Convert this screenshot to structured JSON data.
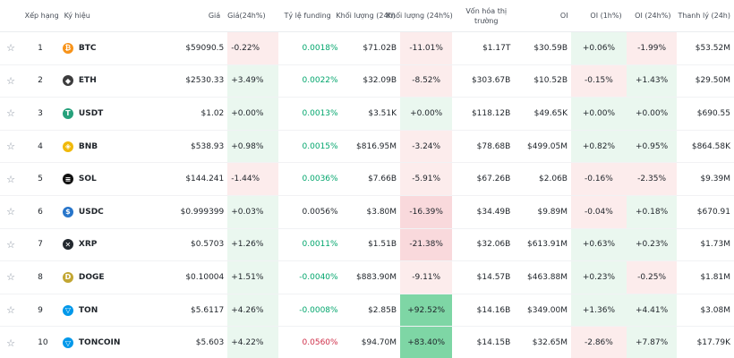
{
  "header": {
    "rank": "Xếp hạng",
    "symbol": "Ký hiệu",
    "price": "Giá",
    "change": "Giá(24h%)",
    "funding": "Tỷ lệ funding",
    "volume": "Khối lượng (24h)",
    "volume_change": "Khối lượng (24h%)",
    "mcap": "Vốn hóa thị trường",
    "oi": "OI",
    "oi1h": "OI (1h%)",
    "oi24h": "OI (24h%)",
    "liq": "Thanh lý (24h)"
  },
  "colors": {
    "pos_light": "#eaf7ef",
    "pos_mid": "#d7f0e0",
    "pos_strong": "#7ed6a5",
    "neg_light": "#fcecec",
    "neg_mid": "#f9d9dc",
    "neg_strong": "#f4bcc3"
  },
  "rows": [
    {
      "rank": "1",
      "symbol": "BTC",
      "icon": "btc-icon",
      "icon_color": "#f7931a",
      "glyph": "₿",
      "price": "$59090.5",
      "change": "-0.22%",
      "change_bg": "neg_light",
      "funding": "0.0018%",
      "funding_tone": "pos",
      "volume": "$71.02B",
      "vchg": "-11.01%",
      "vchg_bg": "neg_light",
      "mcap": "$1.17T",
      "oi": "$30.59B",
      "oi1h": "+0.06%",
      "oi1h_bg": "pos_light",
      "oi24h": "-1.99%",
      "oi24h_bg": "neg_light",
      "liq": "$53.52M"
    },
    {
      "rank": "2",
      "symbol": "ETH",
      "icon": "eth-icon",
      "icon_color": "#3c3c3d",
      "glyph": "◆",
      "price": "$2530.33",
      "change": "+3.49%",
      "change_bg": "pos_light",
      "funding": "0.0022%",
      "funding_tone": "pos",
      "volume": "$32.09B",
      "vchg": "-8.52%",
      "vchg_bg": "neg_light",
      "mcap": "$303.67B",
      "oi": "$10.52B",
      "oi1h": "-0.15%",
      "oi1h_bg": "neg_light",
      "oi24h": "+1.43%",
      "oi24h_bg": "pos_light",
      "liq": "$29.50M"
    },
    {
      "rank": "3",
      "symbol": "USDT",
      "icon": "usdt-icon",
      "icon_color": "#26a17b",
      "glyph": "T",
      "price": "$1.02",
      "change": "+0.00%",
      "change_bg": "pos_light",
      "funding": "0.0013%",
      "funding_tone": "pos",
      "volume": "$3.51K",
      "vchg": "+0.00%",
      "vchg_bg": "pos_light",
      "mcap": "$118.12B",
      "oi": "$49.65K",
      "oi1h": "+0.00%",
      "oi1h_bg": "pos_light",
      "oi24h": "+0.00%",
      "oi24h_bg": "pos_light",
      "liq": "$690.55"
    },
    {
      "rank": "4",
      "symbol": "BNB",
      "icon": "bnb-icon",
      "icon_color": "#f0b90b",
      "glyph": "◈",
      "price": "$538.93",
      "change": "+0.98%",
      "change_bg": "pos_light",
      "funding": "0.0015%",
      "funding_tone": "pos",
      "volume": "$816.95M",
      "vchg": "-3.24%",
      "vchg_bg": "neg_light",
      "mcap": "$78.68B",
      "oi": "$499.05M",
      "oi1h": "+0.82%",
      "oi1h_bg": "pos_light",
      "oi24h": "+0.95%",
      "oi24h_bg": "pos_light",
      "liq": "$864.58K"
    },
    {
      "rank": "5",
      "symbol": "SOL",
      "icon": "sol-icon",
      "icon_color": "#111111",
      "glyph": "≡",
      "price": "$144.241",
      "change": "-1.44%",
      "change_bg": "neg_light",
      "funding": "0.0036%",
      "funding_tone": "pos",
      "volume": "$7.66B",
      "vchg": "-5.91%",
      "vchg_bg": "neg_light",
      "mcap": "$67.26B",
      "oi": "$2.06B",
      "oi1h": "-0.16%",
      "oi1h_bg": "neg_light",
      "oi24h": "-2.35%",
      "oi24h_bg": "neg_light",
      "liq": "$9.39M"
    },
    {
      "rank": "6",
      "symbol": "USDC",
      "icon": "usdc-icon",
      "icon_color": "#2775ca",
      "glyph": "$",
      "price": "$0.999399",
      "change": "+0.03%",
      "change_bg": "pos_light",
      "funding": "0.0056%",
      "funding_tone": "neutral",
      "volume": "$3.80M",
      "vchg": "-16.39%",
      "vchg_bg": "neg_mid",
      "mcap": "$34.49B",
      "oi": "$9.89M",
      "oi1h": "-0.04%",
      "oi1h_bg": "neg_light",
      "oi24h": "+0.18%",
      "oi24h_bg": "pos_light",
      "liq": "$670.91"
    },
    {
      "rank": "7",
      "symbol": "XRP",
      "icon": "xrp-icon",
      "icon_color": "#23292f",
      "glyph": "✕",
      "price": "$0.5703",
      "change": "+1.26%",
      "change_bg": "pos_light",
      "funding": "0.0011%",
      "funding_tone": "pos",
      "volume": "$1.51B",
      "vchg": "-21.38%",
      "vchg_bg": "neg_mid",
      "mcap": "$32.06B",
      "oi": "$613.91M",
      "oi1h": "+0.63%",
      "oi1h_bg": "pos_light",
      "oi24h": "+0.23%",
      "oi24h_bg": "pos_light",
      "liq": "$1.73M"
    },
    {
      "rank": "8",
      "symbol": "DOGE",
      "icon": "doge-icon",
      "icon_color": "#c2a633",
      "glyph": "D",
      "price": "$0.10004",
      "change": "+1.51%",
      "change_bg": "pos_light",
      "funding": "-0.0040%",
      "funding_tone": "pos",
      "volume": "$883.90M",
      "vchg": "-9.11%",
      "vchg_bg": "neg_light",
      "mcap": "$14.57B",
      "oi": "$463.88M",
      "oi1h": "+0.23%",
      "oi1h_bg": "pos_light",
      "oi24h": "-0.25%",
      "oi24h_bg": "neg_light",
      "liq": "$1.81M"
    },
    {
      "rank": "9",
      "symbol": "TON",
      "icon": "ton-icon",
      "icon_color": "#0098ea",
      "glyph": "▽",
      "price": "$5.6117",
      "change": "+4.26%",
      "change_bg": "pos_light",
      "funding": "-0.0008%",
      "funding_tone": "pos",
      "volume": "$2.85B",
      "vchg": "+92.52%",
      "vchg_bg": "pos_strong",
      "mcap": "$14.16B",
      "oi": "$349.00M",
      "oi1h": "+1.36%",
      "oi1h_bg": "pos_light",
      "oi24h": "+4.41%",
      "oi24h_bg": "pos_light",
      "liq": "$3.08M"
    },
    {
      "rank": "10",
      "symbol": "TONCOIN",
      "icon": "toncoin-icon",
      "icon_color": "#0098ea",
      "glyph": "▽",
      "price": "$5.603",
      "change": "+4.22%",
      "change_bg": "pos_light",
      "funding": "0.0560%",
      "funding_tone": "neg",
      "volume": "$94.70M",
      "vchg": "+83.40%",
      "vchg_bg": "pos_strong",
      "mcap": "$14.15B",
      "oi": "$32.65M",
      "oi1h": "-2.86%",
      "oi1h_bg": "neg_light",
      "oi24h": "+7.87%",
      "oi24h_bg": "pos_light",
      "liq": "$17.79K"
    }
  ]
}
